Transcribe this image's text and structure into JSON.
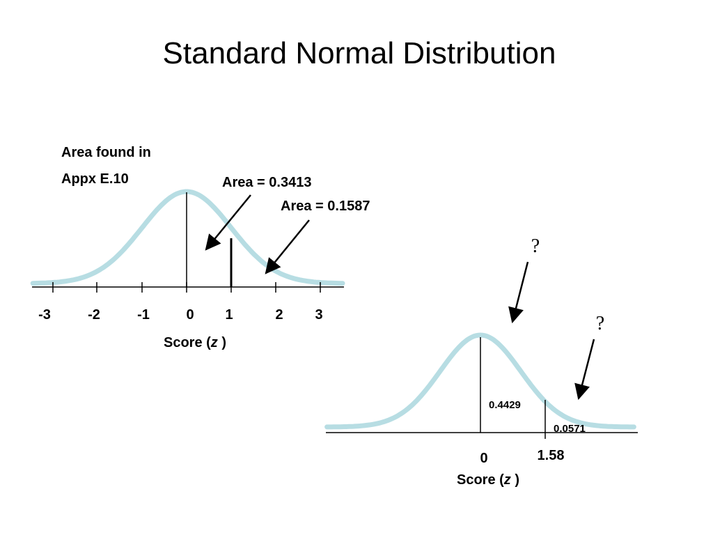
{
  "title": "Standard Normal Distribution",
  "colors": {
    "curve": "#b7dde3",
    "ink": "#000000"
  },
  "left_diagram": {
    "note_line1": "Area found in",
    "note_line2": "Appx E.10",
    "area_label_1": "Area = 0.3413",
    "area_label_2": "Area = 0.1587",
    "ticks": [
      "-3",
      "-2",
      "-1",
      "0",
      "1",
      "2",
      "3"
    ],
    "axis_label_prefix": "Score (",
    "axis_label_var": "z",
    "axis_label_suffix": " )",
    "marked_z": 1
  },
  "right_diagram": {
    "area_center": "0.4429",
    "area_tail": "0.0571",
    "question_1": "?",
    "question_2": "?",
    "tick_0": "0",
    "tick_z": "1.58",
    "axis_label_prefix": "Score (",
    "axis_label_var": "z",
    "axis_label_suffix": " )",
    "marked_z": 1.58
  }
}
